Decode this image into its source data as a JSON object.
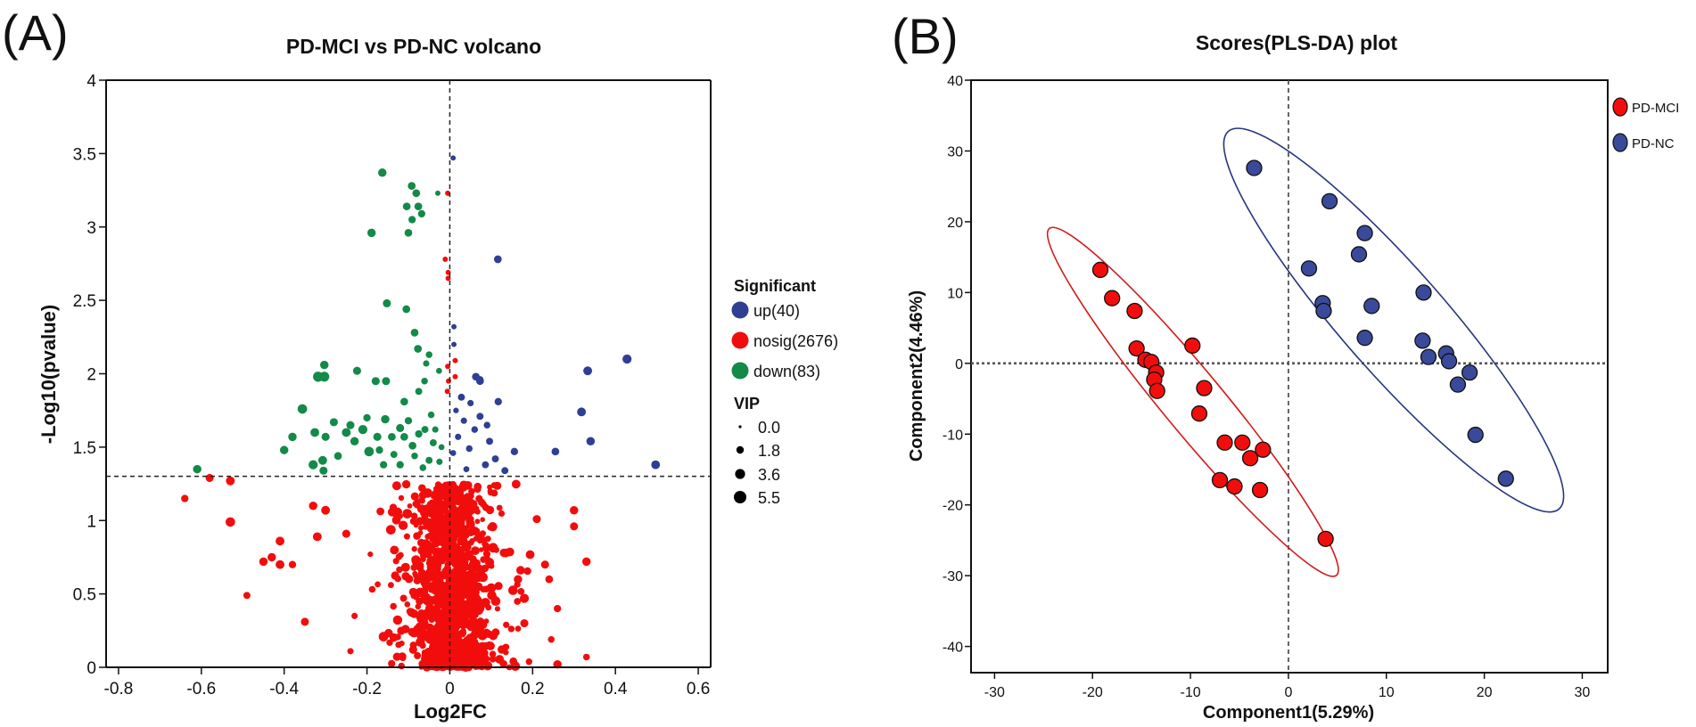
{
  "panels": {
    "a_label": "(A)",
    "b_label": "(B)"
  },
  "colors": {
    "up": "#2f3f94",
    "nosig": "#f20d0d",
    "down": "#138a48",
    "pdmci": "#f20d0d",
    "pdnc": "#3a4a9a",
    "ellipse_mci": "#d21a1a",
    "ellipse_nc": "#27357f"
  },
  "chart_data": [
    {
      "type": "scatter",
      "title": "PD-MCI vs PD-NC volcano",
      "xlabel": "Log2FC",
      "ylabel": "-Log10(pvalue)",
      "xlim": [
        -0.83,
        0.63
      ],
      "ylim": [
        0,
        4
      ],
      "xticks": [
        -0.8,
        -0.6,
        -0.4,
        -0.2,
        0,
        0.2,
        0.4,
        0.6
      ],
      "xtick_labels": [
        "-0.8",
        "-0.6",
        "-0.4",
        "-0.2",
        "0",
        "0.2",
        "0.4",
        "0.6"
      ],
      "yticks": [
        0,
        0.5,
        1,
        1.5,
        2,
        2.5,
        3,
        3.5,
        4
      ],
      "ytick_labels": [
        "0",
        "0.5",
        "1",
        "1.5",
        "2",
        "2.5",
        "3",
        "3.5",
        "4"
      ],
      "threshold_y": 1.301,
      "threshold_x": 0,
      "grid": false,
      "legend": {
        "placement": "right",
        "significant_title": "Significant",
        "entries": [
          {
            "key": "up",
            "label": "up(40)"
          },
          {
            "key": "nosig",
            "label": "nosig(2676)"
          },
          {
            "key": "down",
            "label": "down(83)"
          }
        ],
        "vip_title": "VIP",
        "vip_entries": [
          {
            "vip": 0.0,
            "label": "0.0"
          },
          {
            "vip": 1.8,
            "label": "1.8"
          },
          {
            "vip": 3.6,
            "label": "3.6"
          },
          {
            "vip": 5.5,
            "label": "5.5"
          }
        ]
      },
      "counts": {
        "up": 40,
        "nosig": 2676,
        "down": 83
      },
      "series": [
        {
          "name": "down",
          "points": [
            [
              -0.163,
              3.37,
              3.2
            ],
            [
              -0.092,
              3.28,
              2.8
            ],
            [
              -0.081,
              3.23,
              2.8
            ],
            [
              -0.029,
              3.23,
              1.4
            ],
            [
              -0.104,
              3.14,
              2.8
            ],
            [
              -0.076,
              3.14,
              2.8
            ],
            [
              -0.068,
              3.09,
              2.6
            ],
            [
              -0.091,
              3.05,
              2.6
            ],
            [
              -0.189,
              2.96,
              3.2
            ],
            [
              -0.1,
              2.96,
              2.8
            ],
            [
              -0.152,
              2.48,
              3.0
            ],
            [
              -0.105,
              2.44,
              2.8
            ],
            [
              -0.085,
              2.28,
              2.8
            ],
            [
              -0.077,
              2.17,
              2.8
            ],
            [
              -0.05,
              2.13,
              2.2
            ],
            [
              -0.026,
              2.02,
              1.8
            ],
            [
              -0.224,
              2.02,
              3.0
            ],
            [
              -0.303,
              2.06,
              3.2
            ],
            [
              -0.318,
              1.98,
              4.2
            ],
            [
              -0.303,
              1.98,
              4.0
            ],
            [
              -0.179,
              1.95,
              3.0
            ],
            [
              -0.154,
              1.95,
              3.0
            ],
            [
              -0.061,
              1.95,
              2.2
            ],
            [
              -0.057,
              2.07,
              2.0
            ],
            [
              -0.075,
              1.88,
              2.4
            ],
            [
              -0.11,
              1.81,
              2.8
            ],
            [
              -0.61,
              1.35,
              3.2
            ],
            [
              -0.4,
              1.48,
              3.2
            ],
            [
              -0.38,
              1.57,
              3.2
            ],
            [
              -0.356,
              1.76,
              3.8
            ],
            [
              -0.326,
              1.6,
              3.4
            ],
            [
              -0.33,
              1.38,
              3.6
            ],
            [
              -0.307,
              1.41,
              3.4
            ],
            [
              -0.305,
              1.34,
              3.0
            ],
            [
              -0.3,
              1.57,
              3.0
            ],
            [
              -0.25,
              1.6,
              3.4
            ],
            [
              -0.24,
              1.65,
              3.0
            ],
            [
              -0.23,
              1.54,
              3.2
            ],
            [
              -0.21,
              1.62,
              3.6
            ],
            [
              -0.195,
              1.47,
              3.8
            ],
            [
              -0.175,
              1.57,
              3.0
            ],
            [
              -0.156,
              1.69,
              3.2
            ],
            [
              -0.14,
              1.57,
              2.8
            ],
            [
              -0.12,
              1.63,
              3.0
            ],
            [
              -0.11,
              1.57,
              2.8
            ],
            [
              -0.1,
              1.68,
              2.6
            ],
            [
              -0.09,
              1.51,
              2.8
            ],
            [
              -0.075,
              1.59,
              2.6
            ],
            [
              -0.06,
              1.62,
              2.4
            ],
            [
              -0.05,
              1.41,
              2.4
            ],
            [
              -0.045,
              1.72,
              2.2
            ],
            [
              -0.04,
              1.53,
              2.4
            ],
            [
              -0.025,
              1.4,
              2.0
            ],
            [
              -0.12,
              1.38,
              2.6
            ],
            [
              -0.16,
              1.38,
              2.6
            ],
            [
              -0.135,
              1.45,
              2.4
            ],
            [
              -0.085,
              1.44,
              2.2
            ],
            [
              -0.065,
              1.36,
              2.2
            ],
            [
              -0.035,
              1.62,
              2.0
            ],
            [
              -0.02,
              1.5,
              1.8
            ],
            [
              -0.17,
              1.48,
              2.6
            ],
            [
              -0.27,
              1.44,
              2.8
            ],
            [
              -0.28,
              1.67,
              3.0
            ],
            [
              -0.2,
              1.7,
              2.6
            ]
          ]
        },
        {
          "name": "up",
          "points": [
            [
              0.008,
              3.47,
              1.4
            ],
            [
              0.116,
              2.78,
              2.8
            ],
            [
              0.01,
              2.32,
              1.4
            ],
            [
              0.01,
              2.2,
              1.4
            ],
            [
              0.063,
              1.98,
              2.8
            ],
            [
              0.073,
              1.95,
              2.8
            ],
            [
              0.333,
              2.02,
              3.4
            ],
            [
              0.428,
              2.1,
              3.6
            ],
            [
              0.028,
              1.84,
              2.4
            ],
            [
              0.008,
              1.46,
              1.8
            ],
            [
              0.02,
              1.57,
              2.0
            ],
            [
              0.034,
              1.68,
              2.0
            ],
            [
              0.047,
              1.49,
              2.2
            ],
            [
              0.06,
              1.62,
              2.2
            ],
            [
              0.073,
              1.71,
              2.4
            ],
            [
              0.086,
              1.38,
              2.4
            ],
            [
              0.096,
              1.54,
              2.4
            ],
            [
              0.11,
              1.42,
              2.4
            ],
            [
              0.117,
              1.81,
              2.6
            ],
            [
              0.133,
              1.34,
              2.4
            ],
            [
              0.156,
              1.47,
              2.6
            ],
            [
              0.255,
              1.47,
              2.8
            ],
            [
              0.318,
              1.74,
              3.4
            ],
            [
              0.34,
              1.54,
              3.2
            ],
            [
              0.497,
              1.38,
              3.4
            ],
            [
              0.073,
              1.96,
              2.4
            ],
            [
              0.04,
              1.35,
              1.8
            ],
            [
              0.015,
              1.75,
              1.6
            ],
            [
              0.05,
              1.8,
              2.0
            ],
            [
              0.09,
              1.65,
              2.2
            ]
          ]
        },
        {
          "name": "nosig",
          "points": [
            [
              -0.005,
              3.23,
              1.4
            ],
            [
              -0.011,
              2.78,
              1.4
            ],
            [
              -0.004,
              2.69,
              1.4
            ],
            [
              -0.004,
              2.65,
              1.4
            ],
            [
              0.013,
              2.09,
              1.4
            ],
            [
              -0.005,
              2.05,
              1.4
            ],
            [
              0.013,
              1.98,
              1.4
            ],
            [
              -0.003,
              1.95,
              1.4
            ],
            [
              -0.006,
              1.88,
              1.4
            ],
            [
              -0.64,
              1.15,
              2.6
            ],
            [
              -0.58,
              1.29,
              3.0
            ],
            [
              -0.53,
              1.27,
              3.4
            ],
            [
              -0.53,
              0.99,
              3.8
            ],
            [
              -0.49,
              0.49,
              2.4
            ],
            [
              -0.45,
              0.72,
              3.2
            ],
            [
              -0.43,
              0.75,
              3.2
            ],
            [
              -0.41,
              0.86,
              3.4
            ],
            [
              -0.41,
              0.7,
              3.4
            ],
            [
              -0.38,
              0.7,
              2.6
            ],
            [
              -0.35,
              0.31,
              3.0
            ],
            [
              -0.32,
              0.89,
              3.4
            ],
            [
              -0.3,
              1.07,
              3.4
            ],
            [
              -0.25,
              0.91,
              3.0
            ],
            [
              -0.33,
              1.1,
              3.2
            ],
            [
              -0.23,
              0.35,
              2.0
            ],
            [
              -0.24,
              0.11,
              2.0
            ],
            [
              0.21,
              1.01,
              3.0
            ],
            [
              0.3,
              0.96,
              3.0
            ],
            [
              0.3,
              1.07,
              3.2
            ],
            [
              0.33,
              0.72,
              3.2
            ],
            [
              0.26,
              0.02,
              3.2
            ],
            [
              0.33,
              0.07,
              2.2
            ],
            [
              0.26,
              0.4,
              2.6
            ],
            [
              0.245,
              0.19,
              2.2
            ],
            [
              0.23,
              0.7,
              3.0
            ],
            [
              0.24,
              0.6,
              2.8
            ],
            [
              0.18,
              0.3,
              3.0
            ],
            [
              0.18,
              0.47,
              3.6
            ]
          ]
        }
      ]
    },
    {
      "type": "scatter",
      "title": "Scores(PLS-DA) plot",
      "xlabel": "Component1(5.29%)",
      "ylabel": "Component2(4.46%)",
      "xlim": [
        -32.4,
        32.6
      ],
      "ylim": [
        -43.7,
        40
      ],
      "xticks": [
        -30,
        -20,
        -10,
        0,
        10,
        20,
        30
      ],
      "xtick_labels": [
        "-30",
        "-20",
        "-10",
        "0",
        "10",
        "20",
        "30"
      ],
      "yticks": [
        -40,
        -30,
        -20,
        -10,
        0,
        10,
        20,
        30,
        40
      ],
      "ytick_labels": [
        "-40",
        "-30",
        "-20",
        "-10",
        "0",
        "10",
        "20",
        "30",
        "40"
      ],
      "grid": false,
      "legend": {
        "placement": "top-right",
        "entries": [
          {
            "key": "pdmci",
            "label": "PD-MCI"
          },
          {
            "key": "pdnc",
            "label": "PD-NC"
          }
        ]
      },
      "series": [
        {
          "name": "PD-MCI",
          "ellipse_center": [
            -9.75,
            -5.45
          ],
          "points": [
            [
              -19.2,
              13.2
            ],
            [
              -18.0,
              9.2
            ],
            [
              -15.7,
              7.4
            ],
            [
              -15.5,
              2.1
            ],
            [
              -14.6,
              0.5
            ],
            [
              -14.0,
              0.2
            ],
            [
              -13.5,
              -1.3
            ],
            [
              -13.7,
              -2.3
            ],
            [
              -13.4,
              -3.9
            ],
            [
              -9.8,
              2.5
            ],
            [
              -8.6,
              -3.5
            ],
            [
              -9.1,
              -7.1
            ],
            [
              -6.5,
              -11.2
            ],
            [
              -4.7,
              -11.2
            ],
            [
              -2.6,
              -12.2
            ],
            [
              -3.9,
              -13.4
            ],
            [
              -7.0,
              -16.5
            ],
            [
              -5.5,
              -17.4
            ],
            [
              -2.9,
              -17.9
            ],
            [
              3.8,
              -24.8
            ]
          ]
        },
        {
          "name": "PD-NC",
          "ellipse_center": [
            10.75,
            6.1
          ],
          "points": [
            [
              -3.5,
              27.6
            ],
            [
              4.2,
              22.9
            ],
            [
              7.8,
              18.4
            ],
            [
              7.2,
              15.4
            ],
            [
              2.1,
              13.4
            ],
            [
              3.5,
              8.5
            ],
            [
              3.6,
              7.4
            ],
            [
              8.5,
              8.1
            ],
            [
              13.8,
              10.0
            ],
            [
              7.8,
              3.6
            ],
            [
              13.7,
              3.2
            ],
            [
              14.3,
              0.9
            ],
            [
              16.1,
              1.4
            ],
            [
              16.4,
              0.3
            ],
            [
              18.5,
              -1.3
            ],
            [
              17.3,
              -3.0
            ],
            [
              19.1,
              -10.1
            ],
            [
              22.2,
              -16.3
            ]
          ]
        }
      ]
    }
  ]
}
